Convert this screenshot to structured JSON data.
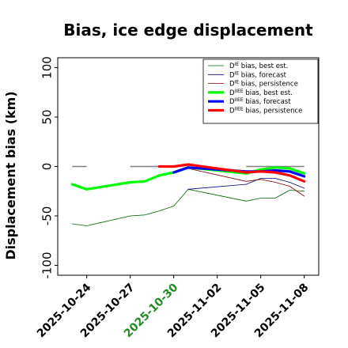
{
  "chart_data": {
    "type": "line",
    "title": "Bias, ice edge displacement",
    "xlabel": "",
    "ylabel": "Displacement bias (km)",
    "ylim": [
      -110,
      110
    ],
    "yticks": [
      100,
      50,
      0,
      -50,
      -100
    ],
    "xlim": [
      "2025-10-22",
      "2025-11-09"
    ],
    "xticks": [
      {
        "label": "2025-10-24",
        "date": "2025-10-24",
        "color": "#000000"
      },
      {
        "label": "2025-10-27",
        "date": "2025-10-27",
        "color": "#000000"
      },
      {
        "label": "2025-10-30",
        "date": "2025-10-30",
        "color": "#228B22"
      },
      {
        "label": "2025-11-02",
        "date": "2025-11-02",
        "color": "#000000"
      },
      {
        "label": "2025-11-05",
        "date": "2025-11-05",
        "color": "#000000"
      },
      {
        "label": "2025-11-08",
        "date": "2025-11-08",
        "color": "#000000"
      }
    ],
    "series": [
      {
        "name": "bias, best est.",
        "legend_prefix": "D",
        "legend_sup": "IE",
        "color": "#006400",
        "width": 0.8,
        "points": [
          [
            "2025-10-23",
            -58
          ],
          [
            "2025-10-24",
            -60
          ],
          [
            "2025-10-27",
            -50
          ],
          [
            "2025-10-28",
            -49
          ],
          [
            "2025-10-29",
            -45
          ],
          [
            "2025-10-30",
            -40
          ],
          [
            "2025-10-31",
            -23
          ],
          [
            "2025-11-04",
            -35
          ],
          [
            "2025-11-05",
            -32
          ],
          [
            "2025-11-06",
            -32
          ],
          [
            "2025-11-07",
            -24
          ],
          [
            "2025-11-08",
            -25
          ]
        ]
      },
      {
        "name": "bias, forecast",
        "legend_prefix": "D",
        "legend_sup": "IE",
        "color": "#00008B",
        "width": 0.8,
        "points": [
          [
            "2025-10-31",
            -23
          ],
          [
            "2025-11-04",
            -18
          ],
          [
            "2025-11-05",
            -12
          ],
          [
            "2025-11-06",
            -12
          ],
          [
            "2025-11-07",
            -16
          ],
          [
            "2025-11-08",
            -22
          ]
        ]
      },
      {
        "name": "bias, persistence",
        "legend_prefix": "D",
        "legend_sup": "IE",
        "color": "#8B0000",
        "width": 0.8,
        "points": [
          [
            "2025-10-31",
            -2
          ],
          [
            "2025-11-04",
            -15
          ],
          [
            "2025-11-05",
            -13
          ],
          [
            "2025-11-06",
            -16
          ],
          [
            "2025-11-07",
            -20
          ],
          [
            "2025-11-08",
            -30
          ]
        ]
      },
      {
        "name": "bias, best est.",
        "legend_prefix": "D",
        "legend_sup": "IIEE",
        "color": "#00FF00",
        "width": 3.2,
        "points": [
          [
            "2025-10-23",
            -18
          ],
          [
            "2025-10-24",
            -23
          ],
          [
            "2025-10-27",
            -16
          ],
          [
            "2025-10-28",
            -15
          ],
          [
            "2025-10-29",
            -9
          ],
          [
            "2025-10-30",
            -6
          ],
          [
            "2025-10-31",
            -1
          ],
          [
            "2025-11-04",
            -7
          ],
          [
            "2025-11-05",
            -3
          ],
          [
            "2025-11-06",
            -1
          ],
          [
            "2025-11-07",
            -2
          ],
          [
            "2025-11-08",
            -7
          ]
        ]
      },
      {
        "name": "bias, forecast",
        "legend_prefix": "D",
        "legend_sup": "IIEE",
        "color": "#0000FF",
        "width": 3.2,
        "points": [
          [
            "2025-10-30",
            -6
          ],
          [
            "2025-10-31",
            -1
          ],
          [
            "2025-11-04",
            -5
          ],
          [
            "2025-11-05",
            -5
          ],
          [
            "2025-11-06",
            -4
          ],
          [
            "2025-11-07",
            -5
          ],
          [
            "2025-11-08",
            -10
          ]
        ]
      },
      {
        "name": "bias, persistence",
        "legend_prefix": "D",
        "legend_sup": "IIEE",
        "color": "#FF0000",
        "width": 3.2,
        "points": [
          [
            "2025-10-29",
            0
          ],
          [
            "2025-10-30",
            0
          ],
          [
            "2025-10-31",
            2
          ],
          [
            "2025-11-04",
            -6
          ],
          [
            "2025-11-05",
            -5
          ],
          [
            "2025-11-06",
            -6
          ],
          [
            "2025-11-07",
            -9
          ],
          [
            "2025-11-08",
            -15
          ]
        ]
      }
    ],
    "reference_segments": [
      {
        "color": "#808080",
        "points": [
          [
            "2025-10-23",
            0
          ],
          [
            "2025-10-24",
            0
          ]
        ]
      },
      {
        "color": "#808080",
        "points": [
          [
            "2025-10-27",
            0
          ],
          [
            "2025-10-30",
            0
          ]
        ]
      },
      {
        "color": "#808080",
        "points": [
          [
            "2025-11-04",
            0
          ],
          [
            "2025-11-08",
            0
          ]
        ]
      }
    ],
    "legend_position": "upper-right",
    "grid": false
  }
}
